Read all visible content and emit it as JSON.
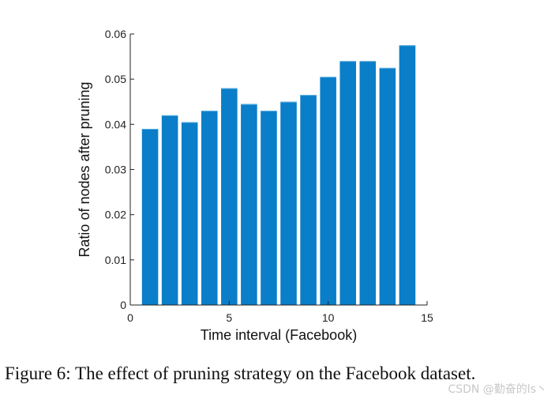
{
  "chart_data": {
    "type": "bar",
    "categories": [
      "1",
      "2",
      "3",
      "4",
      "5",
      "6",
      "7",
      "8",
      "9",
      "10",
      "11",
      "12",
      "13",
      "14"
    ],
    "x": [
      1,
      2,
      3,
      4,
      5,
      6,
      7,
      8,
      9,
      10,
      11,
      12,
      13,
      14
    ],
    "values": [
      0.039,
      0.042,
      0.0405,
      0.043,
      0.048,
      0.0445,
      0.043,
      0.045,
      0.0465,
      0.0505,
      0.054,
      0.054,
      0.0525,
      0.0575
    ],
    "title": "",
    "xlabel": "Time interval (Facebook)",
    "ylabel": "Ratio of nodes after pruning",
    "xlim": [
      0,
      15
    ],
    "ylim": [
      0,
      0.06
    ],
    "xticks": [
      0,
      5,
      10,
      15
    ],
    "xtick_labels": [
      "0",
      "5",
      "10",
      "15"
    ],
    "yticks": [
      0,
      0.01,
      0.02,
      0.03,
      0.04,
      0.05,
      0.06
    ],
    "ytick_labels": [
      "0",
      "0.01",
      "0.02",
      "0.03",
      "0.04",
      "0.05",
      "0.06"
    ],
    "grid": false,
    "bar_color": "#0a7ec8"
  },
  "caption": "Figure 6: The effect of pruning strategy on the Facebook dataset.",
  "watermark": "CSDN @勤奋的ls丶"
}
